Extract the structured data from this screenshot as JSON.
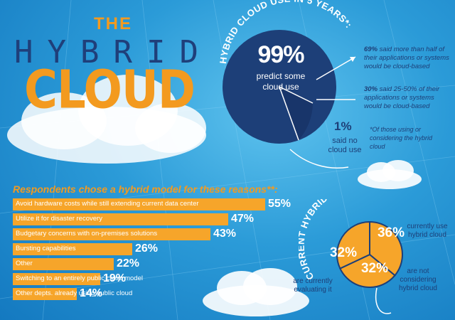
{
  "title": {
    "the": "THE",
    "hybrid": "HYBRID",
    "cloud": "CLOUD"
  },
  "five_year": {
    "heading": "HYBRID CLOUD USE IN 5 YEARS*:",
    "big_pct": "99%",
    "big_text_1": "predict some",
    "big_text_2": "cloud use",
    "small_pct": "1%",
    "small_text_1": "said no",
    "small_text_2": "cloud use",
    "note1_pct": "69%",
    "note1_text": "said more than half of their applications or systems would be cloud-based",
    "note2_pct": "30%",
    "note2_text": "said 25-50% of their applications or systems would be cloud-based",
    "footnote": "*Of those using or considering the hybrid cloud"
  },
  "reasons": {
    "title": "Respondents chose a hybrid model for these reasons**:",
    "items": [
      {
        "label": "Avoid hardware costs while still extending current data center",
        "value": "55%",
        "fraction": 0.55
      },
      {
        "label": "Utilize it for disaster recovery",
        "value": "47%",
        "fraction": 0.47
      },
      {
        "label": "Budgetary concerns with on-premises solutions",
        "value": "43%",
        "fraction": 0.43
      },
      {
        "label": "Bursting capabilities",
        "value": "26%",
        "fraction": 0.26
      },
      {
        "label": "Other",
        "value": "22%",
        "fraction": 0.22
      },
      {
        "label": "Switching to an entirely public cloud model",
        "value": "19%",
        "fraction": 0.19
      },
      {
        "label": "Other depts. already using public cloud",
        "value": "14%",
        "fraction": 0.14
      }
    ]
  },
  "current": {
    "heading": "CURRENT HYBRID CLOUD USE:",
    "slices": [
      {
        "pct": "36%",
        "value": 36,
        "label": "currently use hybrid cloud"
      },
      {
        "pct": "32%",
        "value": 32,
        "label": "are not considering hybrid cloud"
      },
      {
        "pct": "32%",
        "value": 32,
        "label": "are currently evaluating it"
      }
    ]
  },
  "colors": {
    "orange": "#f6a52a",
    "navy": "#1d3f78",
    "sky": "#2b9bd8"
  }
}
